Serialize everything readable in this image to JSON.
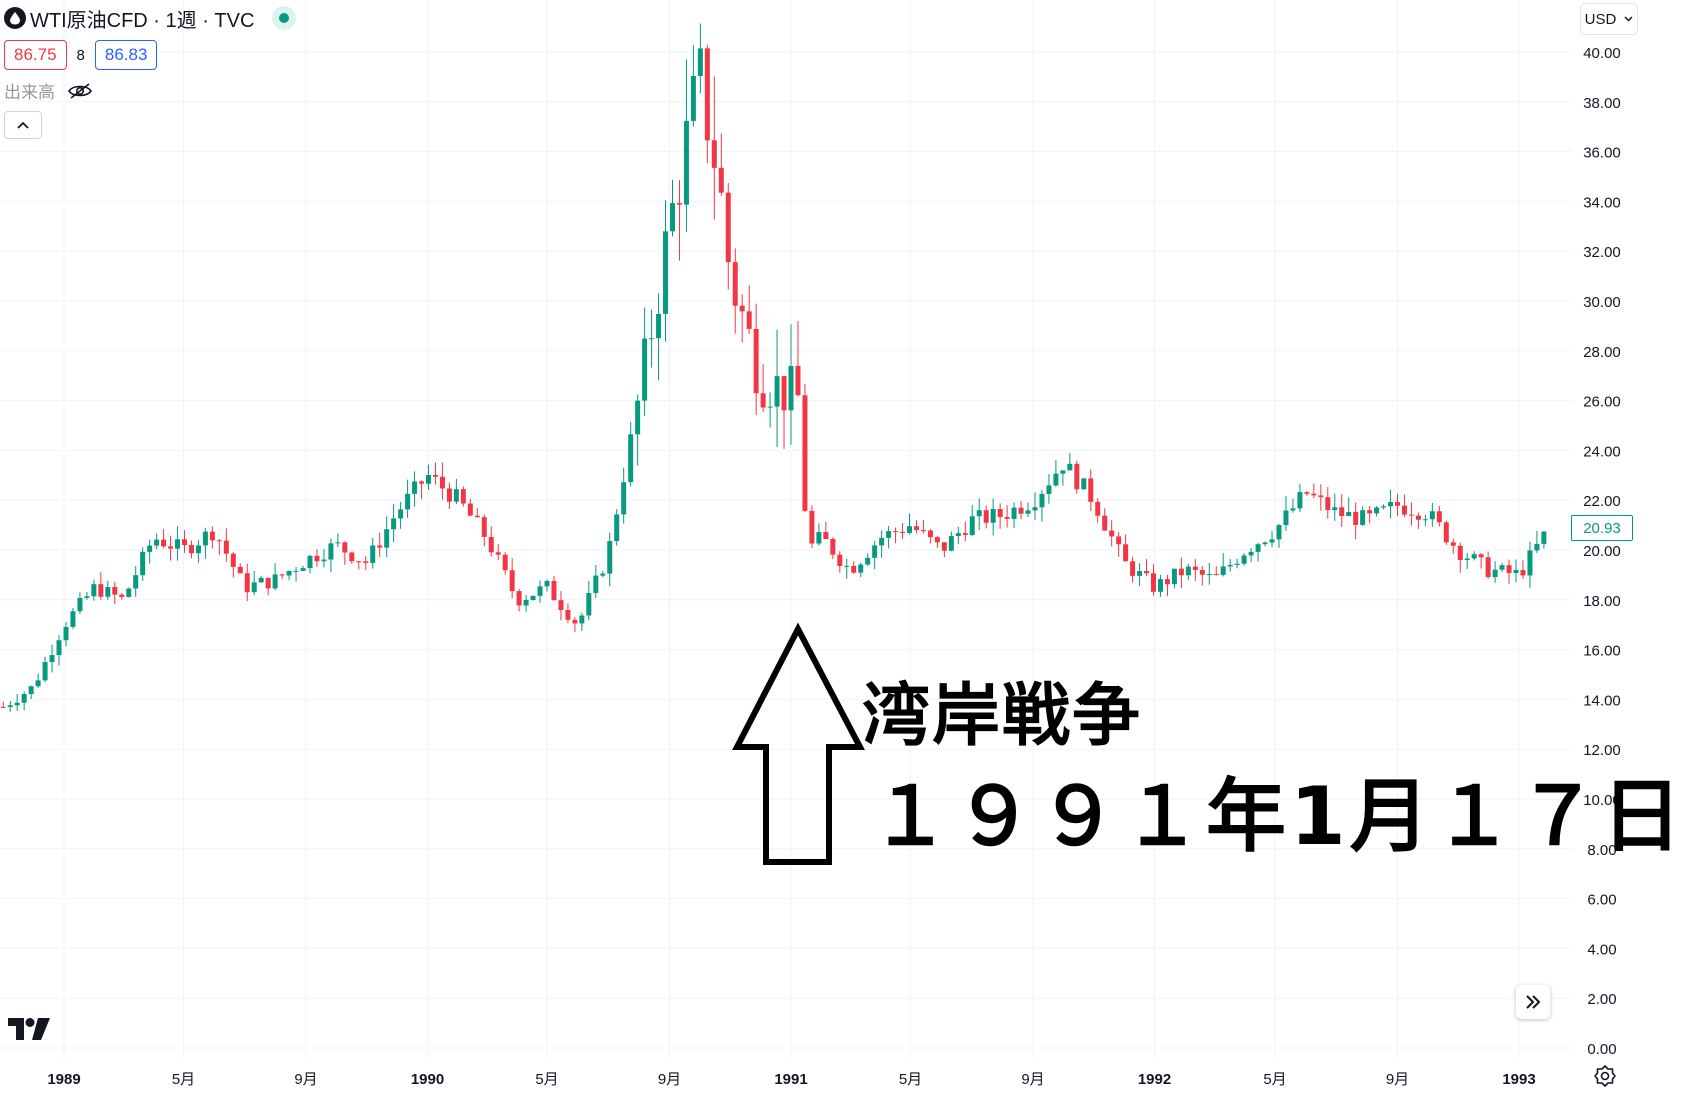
{
  "header": {
    "title": "WTI原油CFD · 1週 · TVC",
    "bid": "86.75",
    "spread": "8",
    "ask": "86.83",
    "volume_label": "出来高"
  },
  "currency": "USD",
  "last_price_label": "20.93",
  "annotation": {
    "title": "湾岸戦争",
    "date": "１９９１年1月１７日"
  },
  "colors": {
    "up": "#089981",
    "down": "#f23645",
    "grid": "#f0f3fa"
  },
  "chart_data": {
    "type": "candlestick",
    "interval": "1週",
    "x_axis": {
      "labels": [
        "1989",
        "5月",
        "9月",
        "1990",
        "5月",
        "9月",
        "1991",
        "5月",
        "9月",
        "1992",
        "5月",
        "9月",
        "1993"
      ],
      "label_dates": [
        "1989-01",
        "1989-05",
        "1989-09",
        "1990-01",
        "1990-05",
        "1990-09",
        "1991-01",
        "1991-05",
        "1991-09",
        "1992-01",
        "1992-05",
        "1992-09",
        "1993-01"
      ],
      "bold": [
        true,
        false,
        false,
        true,
        false,
        false,
        true,
        false,
        false,
        true,
        false,
        false,
        true
      ]
    },
    "y_axis": {
      "ticks": [
        "0.00",
        "2.00",
        "4.00",
        "6.00",
        "8.00",
        "10.00",
        "12.00",
        "14.00",
        "16.00",
        "18.00",
        "20.00",
        "22.00",
        "24.00",
        "26.00",
        "28.00",
        "30.00",
        "32.00",
        "34.00",
        "36.00",
        "38.00",
        "40.00"
      ],
      "range": [
        0,
        42
      ],
      "position": "right"
    },
    "grid": true,
    "close_path": [
      [
        "1988-11",
        13.7
      ],
      [
        "1988-12",
        14.5
      ],
      [
        "1989-01",
        17.0
      ],
      [
        "1989-02",
        18.5
      ],
      [
        "1989-03",
        18.0
      ],
      [
        "1989-04",
        20.5
      ],
      [
        "1989-05",
        20.0
      ],
      [
        "1989-06",
        20.8
      ],
      [
        "1989-07",
        18.5
      ],
      [
        "1989-08",
        18.8
      ],
      [
        "1989-09",
        19.6
      ],
      [
        "1989-10",
        20.2
      ],
      [
        "1989-11",
        19.5
      ],
      [
        "1989-12",
        21.5
      ],
      [
        "1990-01",
        23.0
      ],
      [
        "1990-02",
        22.0
      ],
      [
        "1990-03",
        20.5
      ],
      [
        "1990-04",
        18.0
      ],
      [
        "1990-05",
        18.5
      ],
      [
        "1990-06",
        17.0
      ],
      [
        "1990-07",
        19.8
      ],
      [
        "1990-08",
        26.0
      ],
      [
        "1990-09",
        33.0
      ],
      [
        "1990-10",
        39.0
      ],
      [
        "1990-10-20",
        35.0
      ],
      [
        "1990-11",
        31.0
      ],
      [
        "1990-12",
        27.0
      ],
      [
        "1991-01-10",
        26.0
      ],
      [
        "1991-01-17",
        20.0
      ],
      [
        "1991-02",
        20.5
      ],
      [
        "1991-03",
        19.2
      ],
      [
        "1991-04",
        20.5
      ],
      [
        "1991-05",
        21.0
      ],
      [
        "1991-06",
        20.0
      ],
      [
        "1991-07",
        21.2
      ],
      [
        "1991-08",
        21.4
      ],
      [
        "1991-09",
        22.0
      ],
      [
        "1991-10",
        23.5
      ],
      [
        "1991-11",
        22.0
      ],
      [
        "1991-12",
        19.5
      ],
      [
        "1992-01",
        18.5
      ],
      [
        "1992-02",
        19.2
      ],
      [
        "1992-03",
        18.8
      ],
      [
        "1992-04",
        20.0
      ],
      [
        "1992-05",
        20.8
      ],
      [
        "1992-06",
        22.3
      ],
      [
        "1992-07",
        21.5
      ],
      [
        "1992-08",
        21.2
      ],
      [
        "1992-09",
        21.8
      ],
      [
        "1992-10",
        21.5
      ],
      [
        "1992-11",
        20.0
      ],
      [
        "1992-12",
        19.2
      ],
      [
        "1993-01",
        19.0
      ],
      [
        "1993-02",
        20.93
      ]
    ]
  }
}
